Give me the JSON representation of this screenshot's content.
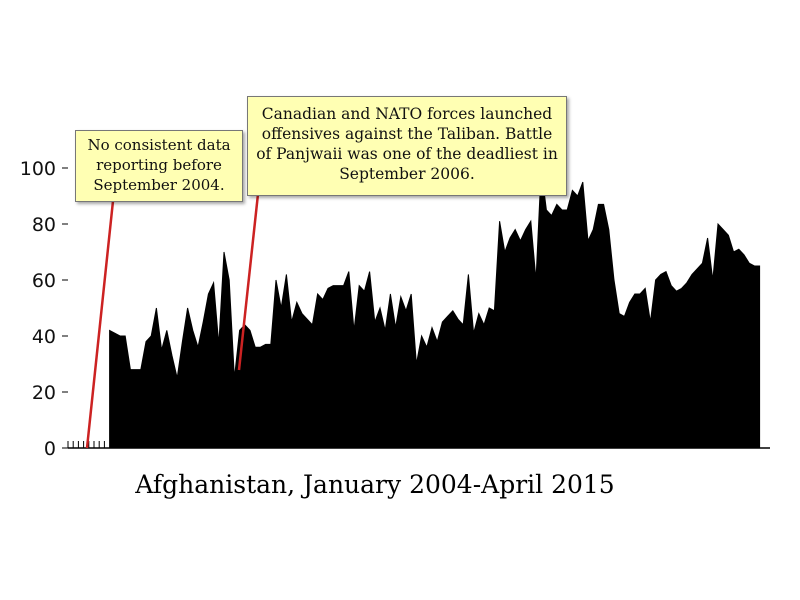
{
  "chart_data": {
    "type": "area",
    "caption": "Afghanistan, January 2004-April 2015",
    "ylim": [
      0,
      100
    ],
    "y_ticks": [
      "0",
      "20",
      "40",
      "60",
      "80",
      "100"
    ],
    "x_range": [
      "2004-01",
      "2015-04"
    ],
    "first_data_month": "2004-09",
    "grid": false,
    "fill_color": "#000000",
    "series": [
      {
        "values": [
          42,
          41,
          40,
          40,
          28,
          28,
          28,
          38,
          40,
          50,
          35,
          42,
          33,
          25,
          38,
          50,
          42,
          36,
          45,
          55,
          59,
          37,
          70,
          60,
          25,
          42,
          44,
          42,
          36,
          36,
          37,
          37,
          60,
          50,
          62,
          45,
          52,
          48,
          46,
          44,
          55,
          53,
          57,
          58,
          58,
          58,
          63,
          42,
          58,
          56,
          63,
          45,
          50,
          42,
          55,
          43,
          54,
          49,
          55,
          30,
          40,
          36,
          43,
          38,
          45,
          47,
          49,
          46,
          44,
          62,
          41,
          48,
          44,
          50,
          49,
          81,
          70,
          75,
          78,
          74,
          78,
          81,
          60,
          100,
          85,
          83,
          87,
          85,
          85,
          92,
          90,
          95,
          74,
          78,
          87,
          87,
          78,
          60,
          48,
          47,
          52,
          55,
          55,
          57,
          45,
          60,
          62,
          63,
          58,
          56,
          57,
          59,
          62,
          64,
          66,
          75,
          60,
          80,
          78,
          76,
          70,
          71,
          69,
          66,
          65,
          65
        ]
      }
    ],
    "annotations": [
      {
        "lines": [
          "No consistent data",
          "reporting before",
          "September 2004."
        ]
      },
      {
        "lines": [
          "Canadian and NATO forces launched",
          "offensives against the Taliban. Battle",
          "of Panjwaii was one of the deadliest in",
          "September 2006."
        ]
      }
    ]
  },
  "colors": {
    "pointer_line": "#cc2222",
    "note_background": "#ffffb3"
  }
}
